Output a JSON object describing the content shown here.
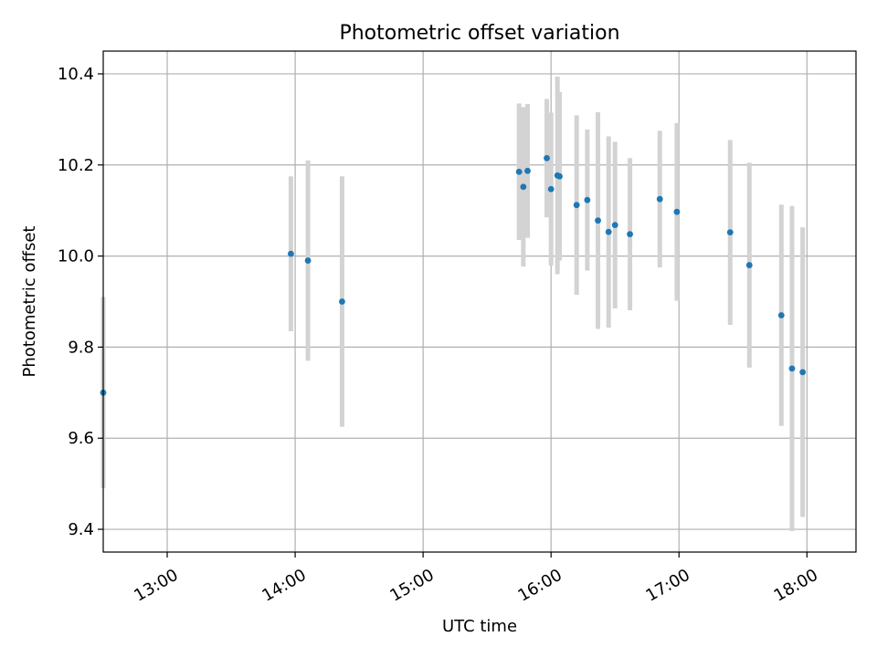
{
  "chart_data": {
    "type": "scatter",
    "title": "Photometric offset variation",
    "xlabel": "UTC time",
    "ylabel": "Photometric offset",
    "x_is_time": true,
    "xlim": [
      "12:30",
      "18:23"
    ],
    "ylim": [
      9.35,
      10.45
    ],
    "x_ticks": [
      "13:00",
      "14:00",
      "15:00",
      "16:00",
      "17:00",
      "18:00"
    ],
    "y_ticks": [
      "9.4",
      "9.6",
      "9.8",
      "10.0",
      "10.2",
      "10.4"
    ],
    "grid": true,
    "marker_color": "#1f77b4",
    "errorbar_color": "#d3d3d3",
    "series": [
      {
        "points": [
          {
            "x": "12:30",
            "y": 9.7,
            "err": 0.21
          },
          {
            "x": "13:58",
            "y": 10.005,
            "err": 0.17
          },
          {
            "x": "14:06",
            "y": 9.99,
            "err": 0.22
          },
          {
            "x": "14:22",
            "y": 9.9,
            "err": 0.275
          },
          {
            "x": "15:45",
            "y": 10.185,
            "err": 0.15
          },
          {
            "x": "15:47",
            "y": 10.152,
            "err": 0.175
          },
          {
            "x": "15:49",
            "y": 10.187,
            "err": 0.147
          },
          {
            "x": "15:58",
            "y": 10.215,
            "err": 0.13
          },
          {
            "x": "16:00",
            "y": 10.147,
            "err": 0.168
          },
          {
            "x": "16:03",
            "y": 10.177,
            "err": 0.217
          },
          {
            "x": "16:04",
            "y": 10.175,
            "err": 0.185
          },
          {
            "x": "16:12",
            "y": 10.112,
            "err": 0.197
          },
          {
            "x": "16:17",
            "y": 10.123,
            "err": 0.155
          },
          {
            "x": "16:22",
            "y": 10.078,
            "err": 0.238
          },
          {
            "x": "16:27",
            "y": 10.053,
            "err": 0.21
          },
          {
            "x": "16:30",
            "y": 10.068,
            "err": 0.183
          },
          {
            "x": "16:37",
            "y": 10.048,
            "err": 0.167
          },
          {
            "x": "16:51",
            "y": 10.125,
            "err": 0.15
          },
          {
            "x": "16:59",
            "y": 10.097,
            "err": 0.195
          },
          {
            "x": "17:24",
            "y": 10.052,
            "err": 0.203
          },
          {
            "x": "17:33",
            "y": 9.98,
            "err": 0.225
          },
          {
            "x": "17:48",
            "y": 9.87,
            "err": 0.243
          },
          {
            "x": "17:53",
            "y": 9.753,
            "err": 0.357
          },
          {
            "x": "17:58",
            "y": 9.745,
            "err": 0.318
          }
        ]
      }
    ]
  }
}
